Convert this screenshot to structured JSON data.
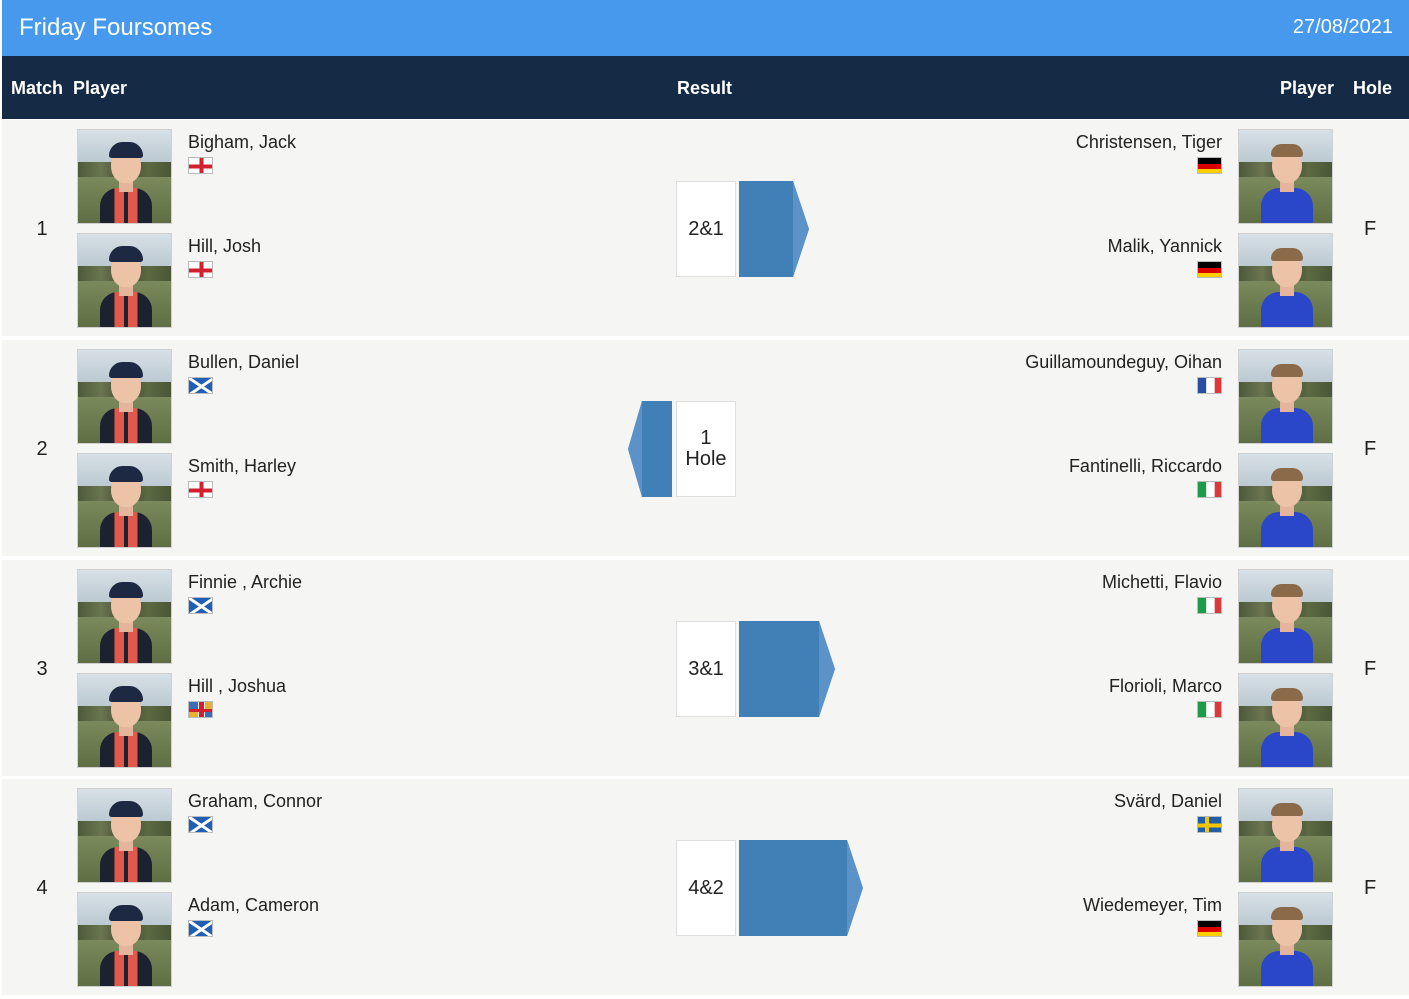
{
  "header": {
    "title": "Friday Foursomes",
    "date": "27/08/2021"
  },
  "columns": {
    "match": "Match",
    "player_left": "Player",
    "result": "Result",
    "player_right": "Player",
    "hole": "Hole"
  },
  "colors": {
    "title_bar": "#4799ee",
    "header_bar": "#152a44",
    "result_arrow": "#417fb7"
  },
  "matches": [
    {
      "number": "1",
      "left": [
        {
          "name": "Bigham, Jack",
          "flag": "england"
        },
        {
          "name": "Hill, Josh",
          "flag": "england"
        }
      ],
      "right": [
        {
          "name": "Christensen, Tiger",
          "flag": "germany"
        },
        {
          "name": "Malik, Yannick",
          "flag": "germany"
        }
      ],
      "result_line1": "2&1",
      "result_line2": "",
      "winner": "left",
      "hole": "F"
    },
    {
      "number": "2",
      "left": [
        {
          "name": "Bullen, Daniel",
          "flag": "scotland"
        },
        {
          "name": "Smith, Harley",
          "flag": "england"
        }
      ],
      "right": [
        {
          "name": "Guillamoundeguy, Oihan",
          "flag": "france"
        },
        {
          "name": "Fantinelli, Riccardo",
          "flag": "italy"
        }
      ],
      "result_line1": "1",
      "result_line2": "Hole",
      "winner": "right",
      "hole": "F"
    },
    {
      "number": "3",
      "left": [
        {
          "name": "Finnie , Archie",
          "flag": "scotland"
        },
        {
          "name": "Hill , Joshua",
          "flag": "guernsey"
        }
      ],
      "right": [
        {
          "name": "Michetti, Flavio",
          "flag": "italy"
        },
        {
          "name": "Florioli, Marco",
          "flag": "italy"
        }
      ],
      "result_line1": "3&1",
      "result_line2": "",
      "winner": "left",
      "hole": "F"
    },
    {
      "number": "4",
      "left": [
        {
          "name": "Graham, Connor",
          "flag": "scotland"
        },
        {
          "name": "Adam, Cameron",
          "flag": "scotland"
        }
      ],
      "right": [
        {
          "name": "Svärd, Daniel",
          "flag": "sweden"
        },
        {
          "name": "Wiedemeyer, Tim",
          "flag": "germany"
        }
      ],
      "result_line1": "4&2",
      "result_line2": "",
      "winner": "left",
      "hole": "F"
    }
  ]
}
